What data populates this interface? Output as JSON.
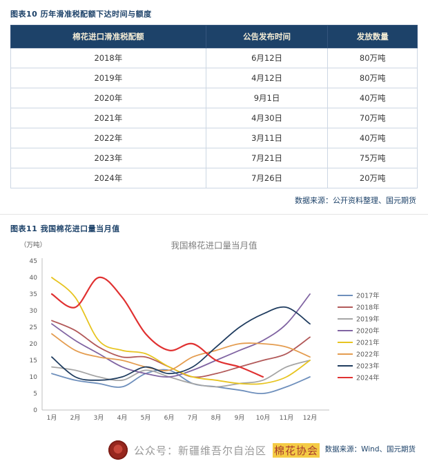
{
  "page": {
    "fig10_caption": "图表10  历年滑准税配额下达时间与额度",
    "fig11_caption": "图表11  我国棉花进口量当月值",
    "table_source": "数据来源：公开资料整理、国元期货",
    "chart_source": "数据来源：Wind、国元期货",
    "watermark_prefix": "公众号：新疆维吾尔自治区",
    "watermark_highlight": "棉花协会"
  },
  "icons": {
    "watermark_logo": "association-logo"
  },
  "colors": {
    "header_bg": "#1d4269",
    "header_text": "#f5edd6",
    "caption_blue": "#1d4269",
    "axis_gray": "#bfbfbf"
  },
  "table": {
    "headers": [
      "棉花进口滑准税配额",
      "公告发布时间",
      "发放数量"
    ],
    "rows": [
      [
        "2018年",
        "6月12日",
        "80万吨"
      ],
      [
        "2019年",
        "4月12日",
        "80万吨"
      ],
      [
        "2020年",
        "9月1日",
        "40万吨"
      ],
      [
        "2021年",
        "4月30日",
        "70万吨"
      ],
      [
        "2022年",
        "3月11日",
        "40万吨"
      ],
      [
        "2023年",
        "7月21日",
        "75万吨"
      ],
      [
        "2024年",
        "7月26日",
        "20万吨"
      ]
    ]
  },
  "chart_data": {
    "type": "line",
    "title": "我国棉花进口量当月值",
    "xlabel": "",
    "ylabel": "（万吨）",
    "ylim": [
      0,
      45
    ],
    "ytick_step": 5,
    "grid": false,
    "legend_position": "right",
    "categories": [
      "1月",
      "2月",
      "3月",
      "4月",
      "5月",
      "6月",
      "7月",
      "8月",
      "9月",
      "10月",
      "11月",
      "12月"
    ],
    "series": [
      {
        "name": "2017年",
        "color": "#6e8fbc",
        "values": [
          11,
          9,
          8,
          7,
          11,
          12,
          8,
          7,
          6,
          5,
          7,
          10
        ]
      },
      {
        "name": "2018年",
        "color": "#b25959",
        "values": [
          27,
          24,
          19,
          16,
          16,
          13,
          10,
          11,
          13,
          15,
          17,
          22
        ]
      },
      {
        "name": "2019年",
        "color": "#a5a5a5",
        "values": [
          13,
          12,
          10,
          9,
          12,
          10,
          8,
          7,
          8,
          9,
          13,
          15
        ]
      },
      {
        "name": "2020年",
        "color": "#8064a2",
        "values": [
          26,
          21,
          17,
          13,
          11,
          10,
          12,
          15,
          18,
          21,
          26,
          35
        ]
      },
      {
        "name": "2021年",
        "color": "#e7c420",
        "values": [
          40,
          34,
          21,
          18,
          17,
          13,
          10,
          9,
          8,
          8,
          10,
          15
        ]
      },
      {
        "name": "2022年",
        "color": "#e49c4f",
        "values": [
          23,
          18,
          16,
          15,
          13,
          12,
          16,
          18,
          20,
          20,
          19,
          16
        ]
      },
      {
        "name": "2023年",
        "color": "#1f3c5f",
        "values": [
          16,
          10,
          9,
          10,
          13,
          11,
          13,
          19,
          25,
          29,
          31,
          26
        ]
      },
      {
        "name": "2024年",
        "color": "#e03131",
        "values": [
          35,
          31,
          40,
          34,
          23,
          18,
          20,
          15,
          13,
          10,
          null,
          null
        ]
      }
    ]
  }
}
